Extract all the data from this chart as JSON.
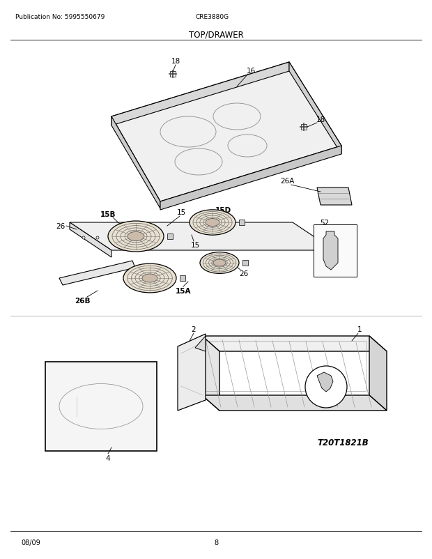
{
  "title": "TOP/DRAWER",
  "pub_no": "Publication No: 5995550679",
  "model": "CRE3880G",
  "date": "08/09",
  "page": "8",
  "diagram_id": "T20T1821B",
  "bg_color": "#ffffff"
}
